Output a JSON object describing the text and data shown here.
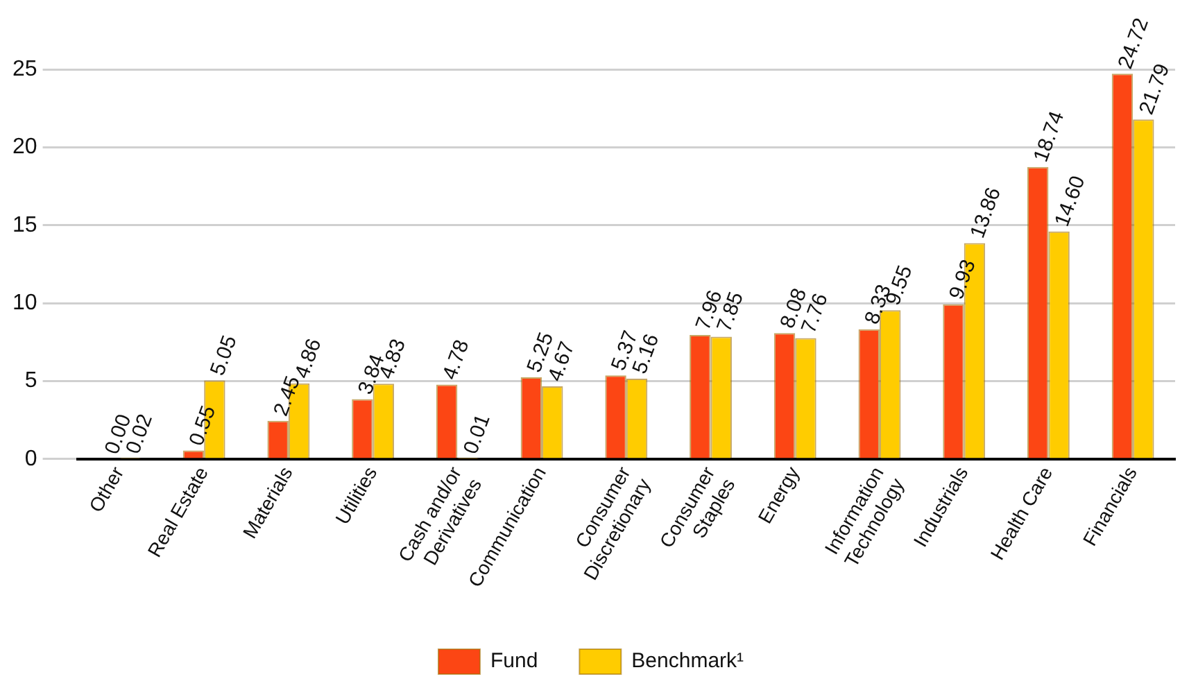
{
  "chart_data": {
    "type": "bar",
    "categories": [
      "Other",
      "Real Estate",
      "Materials",
      "Utilities",
      "Cash and/or Derivatives",
      "Communication",
      "Consumer Discretionary",
      "Consumer Staples",
      "Energy",
      "Information Technology",
      "Industrials",
      "Health Care",
      "Financials"
    ],
    "series": [
      {
        "name": "Fund",
        "color": "#fc4614",
        "values": [
          0.0,
          0.55,
          2.45,
          3.84,
          4.78,
          5.25,
          5.37,
          7.96,
          8.08,
          8.33,
          9.93,
          18.74,
          24.72
        ],
        "value_labels": [
          "0.00",
          "0.55",
          "2.45",
          "3.84",
          "4.78",
          "5.25",
          "5.37",
          "7.96",
          "8.08",
          "8.33",
          "9.93",
          "18.74",
          "24.72"
        ]
      },
      {
        "name": "Benchmark¹",
        "color": "#ffcc00",
        "values": [
          0.02,
          5.05,
          4.86,
          4.83,
          0.01,
          4.67,
          5.16,
          7.85,
          7.76,
          9.55,
          13.86,
          14.6,
          21.79
        ],
        "value_labels": [
          "0.02",
          "5.05",
          "4.86",
          "4.83",
          "0.01",
          "4.67",
          "5.16",
          "7.85",
          "7.76",
          "9.55",
          "13.86",
          "14.60",
          "21.79"
        ]
      }
    ],
    "ylim": [
      0,
      25
    ],
    "yticks": [
      0,
      5,
      10,
      15,
      20,
      25
    ],
    "grid": "y",
    "legend": "bottom"
  }
}
